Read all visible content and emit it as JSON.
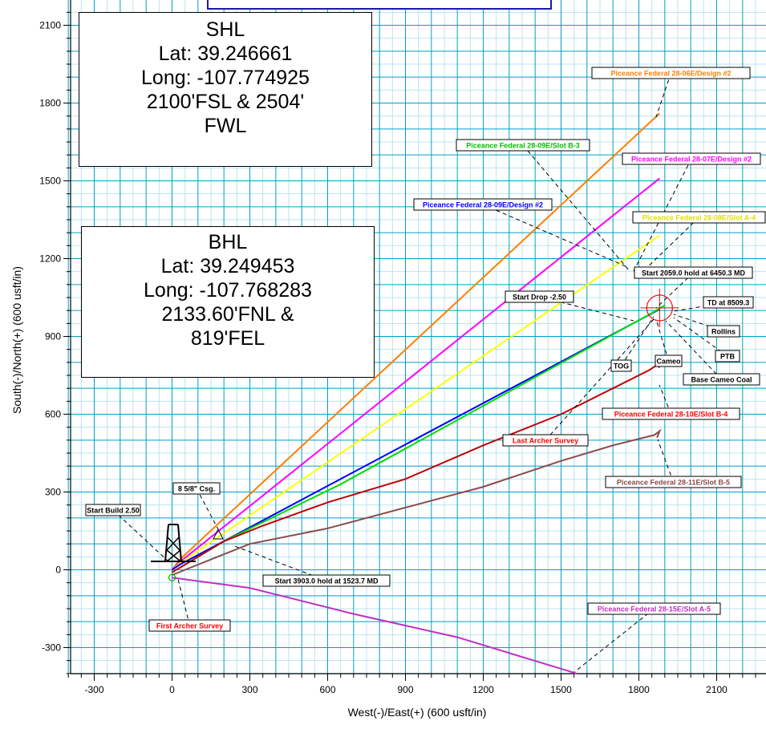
{
  "shl_box": {
    "title": "SHL",
    "lat": "Lat: 39.246661",
    "long": "Long: -107.774925",
    "footage": "2100'FSL & 2504' FWL"
  },
  "bhl_box": {
    "title": "BHL",
    "lat": "Lat: 39.249453",
    "long": "Long: -107.768283",
    "footage": "2133.60'FNL & 819'FEL"
  },
  "chart_data": {
    "type": "line",
    "xlabel": "West(-)/East(+) (600 usft/in)",
    "ylabel": "South(-)/North(+) (600 usft/in)",
    "xlim": [
      -400,
      2280
    ],
    "ylim": [
      -400,
      2200
    ],
    "x_ticks": [
      -300,
      0,
      300,
      600,
      900,
      1200,
      1500,
      1800,
      2100
    ],
    "y_ticks": [
      -300,
      0,
      300,
      600,
      900,
      1200,
      1500,
      1800,
      2100
    ],
    "grid": true,
    "series": [
      {
        "name": "Piceance Federal 28-06E/Design #2",
        "color": "#ff7f00",
        "points": [
          [
            0,
            0
          ],
          [
            30,
            40
          ],
          [
            1880,
            1760
          ]
        ]
      },
      {
        "name": "Piceance Federal 28-07E/Design #2",
        "color": "#ff00ff",
        "points": [
          [
            0,
            0
          ],
          [
            30,
            30
          ],
          [
            1880,
            1510
          ]
        ]
      },
      {
        "name": "Piceance Federal 28-08E/Slot A-4",
        "color": "#ffff00",
        "points": [
          [
            0,
            0
          ],
          [
            30,
            25
          ],
          [
            1880,
            1290
          ]
        ]
      },
      {
        "name": "Piceance Federal 28-09E/Design #2",
        "color": "#0000ff",
        "points": [
          [
            0,
            0
          ],
          [
            30,
            20
          ],
          [
            1880,
            1005
          ]
        ]
      },
      {
        "name": "Piceance Federal 28-09E/Slot B-3",
        "color": "#00dd00",
        "points": [
          [
            0,
            -10
          ],
          [
            200,
            110
          ],
          [
            650,
            330
          ],
          [
            1850,
            990
          ],
          [
            1900,
            1020
          ]
        ]
      },
      {
        "name": "Piceance Federal 28-10E/Slot B-4",
        "color": "#c00000",
        "points": [
          [
            0,
            -10
          ],
          [
            200,
            110
          ],
          [
            350,
            170
          ],
          [
            600,
            260
          ],
          [
            900,
            350
          ],
          [
            1200,
            480
          ],
          [
            1500,
            600
          ],
          [
            1700,
            700
          ],
          [
            1840,
            770
          ],
          [
            1870,
            790
          ],
          [
            1880,
            780
          ]
        ]
      },
      {
        "name": "Piceance Federal 28-11E/Slot B-5",
        "color": "#8b4a4a",
        "points": [
          [
            0,
            -20
          ],
          [
            150,
            40
          ],
          [
            300,
            100
          ],
          [
            600,
            160
          ],
          [
            900,
            240
          ],
          [
            1200,
            320
          ],
          [
            1500,
            420
          ],
          [
            1700,
            480
          ],
          [
            1860,
            520
          ],
          [
            1880,
            535
          ],
          [
            1870,
            510
          ]
        ]
      },
      {
        "name": "Piceance Federal 28-15E/Slot A-5",
        "color": "#c030c0",
        "points": [
          [
            0,
            -30
          ],
          [
            300,
            -70
          ],
          [
            700,
            -170
          ],
          [
            1100,
            -260
          ],
          [
            1560,
            -400
          ]
        ]
      }
    ],
    "annotations": [
      "Piceance Federal 28-06E/Design #2",
      "Piceance Federal 28-09E/Slot B-3",
      "Piceance Federal 28-07E/Design #2",
      "Piceance Federal 28-09E/Design #2",
      "Piceance Federal 28-08E/Slot A-4",
      "Start 2059.0 hold at 6450.3 MD",
      "Start Drop -2.50",
      "TD at 8509.3",
      "Rollins",
      "PTB",
      "TOG",
      "Cameo",
      "Base Cameo Coal",
      "Piceance Federal 28-10E/Slot B-4",
      "Last Archer Survey",
      "8 5/8\" Csg.",
      "Start Build 2.50",
      "Piceance Federal 28-11E/Slot B-5",
      "Start 3903.0 hold at 1523.7 MD",
      "Piceance Federal 28-15E/Slot A-5",
      "First Archer Survey"
    ],
    "colors": {
      "grid_major": "#00a0c8",
      "grid_minor": "#b8e4f0",
      "target_circle": "#ff0000"
    }
  }
}
